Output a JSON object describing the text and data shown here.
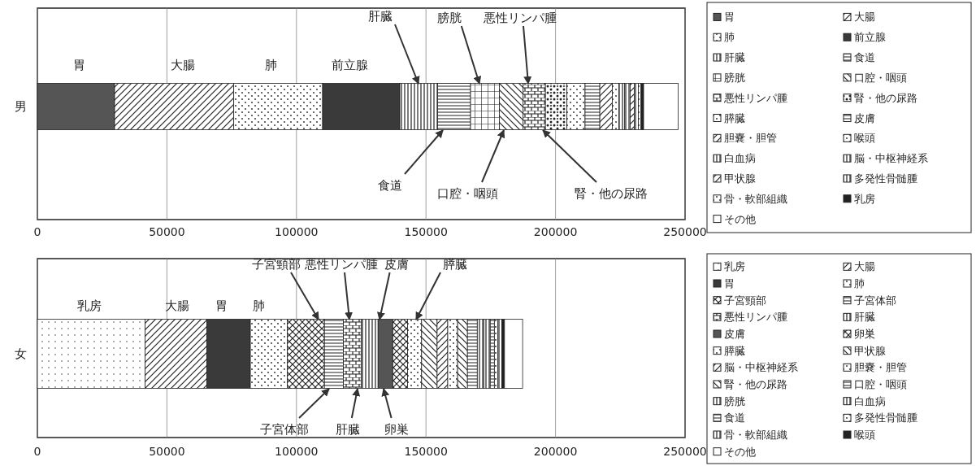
{
  "chart_data": [
    {
      "type": "bar",
      "orientation": "horizontal",
      "stacked": true,
      "categories": [
        "男"
      ],
      "xlim": [
        0,
        250000
      ],
      "xticks": [
        0,
        50000,
        100000,
        150000,
        200000,
        250000
      ],
      "grid": "x",
      "legend": "right",
      "series": [
        {
          "name": "胃",
          "color": "#555555",
          "values": [
            29800
          ]
        },
        {
          "name": "大腸",
          "color": "#222222",
          "values": [
            46000
          ]
        },
        {
          "name": "肺",
          "color": "#222222",
          "values": [
            34300
          ]
        },
        {
          "name": "前立腺",
          "color": "#3a3a3a",
          "values": [
            29800
          ]
        },
        {
          "name": "肝臓",
          "color": "#222222",
          "values": [
            14600
          ]
        },
        {
          "name": "食道",
          "color": "#222222",
          "values": [
            12700
          ]
        },
        {
          "name": "膀胱",
          "color": "#222222",
          "values": [
            11100
          ]
        },
        {
          "name": "口腔・咽頭",
          "color": "#222222",
          "values": [
            9200
          ]
        },
        {
          "name": "悪性リンパ腫",
          "color": "#222222",
          "values": [
            8600
          ]
        },
        {
          "name": "腎・他の尿路",
          "color": "#222222",
          "values": [
            8300
          ]
        },
        {
          "name": "膵臓",
          "color": "#222222",
          "values": [
            7000
          ]
        },
        {
          "name": "皮膚",
          "color": "#222222",
          "values": [
            5700
          ]
        },
        {
          "name": "胆嚢・胆管",
          "color": "#222222",
          "values": [
            4800
          ]
        },
        {
          "name": "喉頭",
          "color": "#222222",
          "values": [
            2500
          ]
        },
        {
          "name": "白血病",
          "color": "#222222",
          "values": [
            2200
          ]
        },
        {
          "name": "脳・中枢神経系",
          "color": "#222222",
          "values": [
            2200
          ]
        },
        {
          "name": "甲状腺",
          "color": "#222222",
          "values": [
            1600
          ]
        },
        {
          "name": "多発性骨髄腫",
          "color": "#222222",
          "values": [
            1600
          ]
        },
        {
          "name": "骨・軟部組織",
          "color": "#222222",
          "values": [
            1000
          ]
        },
        {
          "name": "乳房",
          "color": "#222222",
          "values": [
            1000
          ]
        },
        {
          "name": "その他",
          "color": "#ffffff",
          "values": [
            13300
          ]
        }
      ],
      "annotations": [
        "胃",
        "大腸",
        "肺",
        "前立腺",
        "肝臓",
        "膀胱",
        "悪性リンパ腫",
        "食道",
        "口腔・咽頭",
        "腎・他の尿路"
      ]
    },
    {
      "type": "bar",
      "orientation": "horizontal",
      "stacked": true,
      "categories": [
        "女"
      ],
      "xlim": [
        0,
        250000
      ],
      "xticks": [
        0,
        50000,
        100000,
        150000,
        200000,
        250000
      ],
      "grid": "x",
      "legend": "right",
      "series": [
        {
          "name": "乳房",
          "color": "#222222",
          "values": [
            41600
          ]
        },
        {
          "name": "大腸",
          "color": "#222222",
          "values": [
            23800
          ]
        },
        {
          "name": "胃",
          "color": "#3a3a3a",
          "values": [
            16800
          ]
        },
        {
          "name": "肺",
          "color": "#222222",
          "values": [
            14300
          ]
        },
        {
          "name": "子宮頸部",
          "color": "#222222",
          "values": [
            14300
          ]
        },
        {
          "name": "子宮体部",
          "color": "#222222",
          "values": [
            7300
          ]
        },
        {
          "name": "悪性リンパ腫",
          "color": "#222222",
          "values": [
            7000
          ]
        },
        {
          "name": "肝臓",
          "color": "#222222",
          "values": [
            6400
          ]
        },
        {
          "name": "皮膚",
          "color": "#555555",
          "values": [
            5700
          ]
        },
        {
          "name": "卵巣",
          "color": "#222222",
          "values": [
            5700
          ]
        },
        {
          "name": "膵臓",
          "color": "#222222",
          "values": [
            5400
          ]
        },
        {
          "name": "甲状腺",
          "color": "#222222",
          "values": [
            6000
          ]
        },
        {
          "name": "脳・中枢神経系",
          "color": "#222222",
          "values": [
            4100
          ]
        },
        {
          "name": "胆嚢・胆管",
          "color": "#222222",
          "values": [
            3800
          ]
        },
        {
          "name": "腎・他の尿路",
          "color": "#222222",
          "values": [
            3800
          ]
        },
        {
          "name": "口腔・咽頭",
          "color": "#222222",
          "values": [
            3800
          ]
        },
        {
          "name": "膀胱",
          "color": "#222222",
          "values": [
            2500
          ]
        },
        {
          "name": "白血病",
          "color": "#222222",
          "values": [
            2500
          ]
        },
        {
          "name": "食道",
          "color": "#222222",
          "values": [
            1600
          ]
        },
        {
          "name": "多発性骨髄腫",
          "color": "#222222",
          "values": [
            1300
          ]
        },
        {
          "name": "骨・軟部組織",
          "color": "#222222",
          "values": [
            1600
          ]
        },
        {
          "name": "喉頭",
          "color": "#222222",
          "values": [
            1000
          ]
        },
        {
          "name": "その他",
          "color": "#ffffff",
          "values": [
            7000
          ]
        }
      ],
      "annotations": [
        "乳房",
        "大腸",
        "胃",
        "肺",
        "子宮頸部",
        "悪性リンパ腫",
        "皮膚",
        "膵臓",
        "子宮体部",
        "肝臓",
        "卵巣"
      ]
    }
  ]
}
